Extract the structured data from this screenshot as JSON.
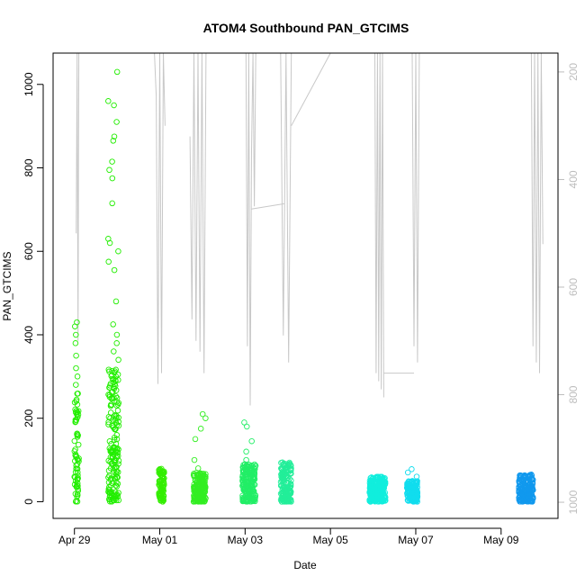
{
  "chart_data": {
    "type": "scatter",
    "title": "ATOM4 Southbound PAN_GTCIMS",
    "xlabel": "Date",
    "ylabel": "PAN_GTCIMS",
    "x_range": [
      "2016-04-28T12:00",
      "2016-05-10T08:00"
    ],
    "ylim": [
      -40,
      1075
    ],
    "y_ticks": [
      0,
      200,
      400,
      600,
      800,
      1000
    ],
    "x_ticks": [
      {
        "label": "Apr 29",
        "date": "2016-04-29T00:00"
      },
      {
        "label": "May 01",
        "date": "2016-05-01T00:00"
      },
      {
        "label": "May 03",
        "date": "2016-05-03T00:00"
      },
      {
        "label": "May 05",
        "date": "2016-05-05T00:00"
      },
      {
        "label": "May 07",
        "date": "2016-05-07T00:00"
      },
      {
        "label": "May 09",
        "date": "2016-05-09T00:00"
      }
    ],
    "right_axis": {
      "color": "#bdbdbd",
      "reversed": true,
      "ylim": [
        1030,
        165
      ],
      "ticks": [
        200,
        400,
        600,
        800,
        1000
      ],
      "series_color": "#c8c8c8"
    },
    "clusters": [
      {
        "start": "2016-04-29T00:00",
        "end": "2016-04-29T02:30",
        "color": "#22ee00",
        "base": [
          0,
          260
        ],
        "outliers": [
          280,
          300,
          320,
          350,
          380,
          400,
          420,
          430
        ]
      },
      {
        "start": "2016-04-29T19:00",
        "end": "2016-04-30T01:00",
        "color": "#22ee00",
        "base": [
          0,
          320
        ],
        "outliers": [
          340,
          360,
          380,
          400,
          425,
          480,
          555,
          575,
          600,
          620,
          630,
          715,
          775,
          795,
          815,
          865,
          875,
          910,
          950,
          960,
          1030
        ]
      },
      {
        "start": "2016-04-30T23:30",
        "end": "2016-05-01T02:30",
        "color": "#33ee00",
        "base": [
          0,
          80
        ],
        "outliers": []
      },
      {
        "start": "2016-05-01T19:00",
        "end": "2016-05-02T02:00",
        "color": "#33ee22",
        "base": [
          0,
          70
        ],
        "outliers": [
          80,
          100,
          150,
          175,
          200,
          210
        ]
      },
      {
        "start": "2016-05-02T22:30",
        "end": "2016-05-03T06:00",
        "color": "#22ee66",
        "base": [
          0,
          90
        ],
        "outliers": [
          100,
          120,
          145,
          180,
          190
        ]
      },
      {
        "start": "2016-05-03T20:00",
        "end": "2016-05-04T02:00",
        "color": "#22ee99",
        "base": [
          0,
          95
        ],
        "outliers": []
      },
      {
        "start": "2016-05-05T22:00",
        "end": "2016-05-06T07:00",
        "color": "#11eedd",
        "base": [
          0,
          60
        ],
        "outliers": []
      },
      {
        "start": "2016-05-06T19:00",
        "end": "2016-05-07T01:00",
        "color": "#11ddee",
        "base": [
          0,
          50
        ],
        "outliers": [
          60,
          70,
          78
        ]
      },
      {
        "start": "2016-05-09T10:00",
        "end": "2016-05-09T18:00",
        "color": "#1199ee",
        "base": [
          0,
          65
        ],
        "outliers": []
      }
    ],
    "right_series_segments": [
      {
        "start": "2016-04-29T01:00",
        "end": "2016-04-29T02:30",
        "values": [
          500,
          120,
          700,
          120
        ]
      },
      {
        "start": "2016-04-30T21:00",
        "end": "2016-05-01T03:00",
        "values": [
          120,
          245,
          780,
          120,
          760,
          120,
          300
        ]
      },
      {
        "start": "2016-05-01T17:00",
        "end": "2016-05-02T02:00",
        "values": [
          320,
          660,
          120,
          700,
          120,
          720,
          120,
          760,
          120
        ]
      },
      {
        "start": "2016-05-03T00:30",
        "end": "2016-05-03T06:00",
        "values": [
          120,
          710,
          120,
          820,
          345,
          120,
          450,
          120
        ]
      },
      {
        "start": "2016-05-03T03:30",
        "end": "2016-05-03T22:00",
        "values": [
          455,
          445
        ]
      },
      {
        "start": "2016-05-03T20:00",
        "end": "2016-05-04T02:00",
        "values": [
          120,
          690,
          120,
          740,
          120
        ]
      },
      {
        "start": "2016-05-04T02:00",
        "end": "2016-05-05T00:00",
        "values": [
          300,
          120
        ]
      },
      {
        "start": "2016-05-06T01:00",
        "end": "2016-05-06T06:00",
        "values": [
          120,
          760,
          120,
          775,
          120,
          790,
          120,
          805
        ]
      },
      {
        "start": "2016-05-06T06:00",
        "end": "2016-05-06T23:00",
        "values": [
          760,
          760
        ]
      },
      {
        "start": "2016-05-06T22:00",
        "end": "2016-05-07T02:00",
        "values": [
          120,
          710,
          120,
          740,
          120
        ]
      },
      {
        "start": "2016-05-09T17:00",
        "end": "2016-05-09T23:30",
        "values": [
          120,
          710,
          120,
          740,
          120,
          760,
          120,
          520
        ]
      }
    ]
  }
}
